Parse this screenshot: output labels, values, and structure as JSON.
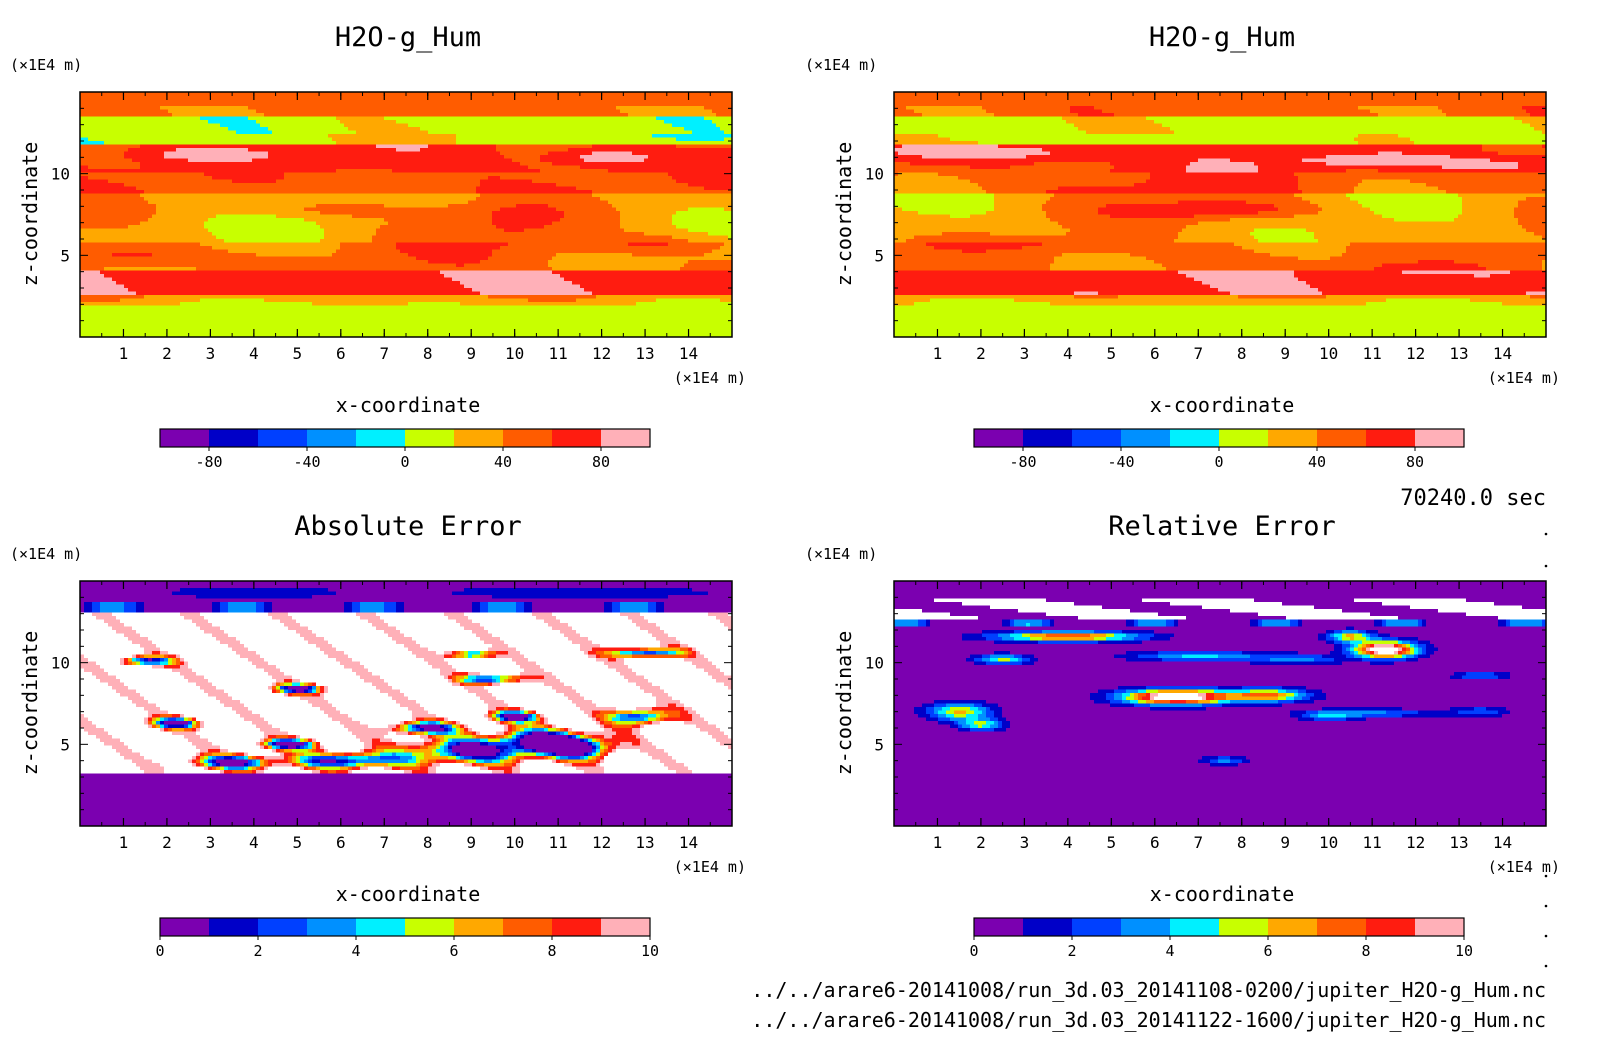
{
  "panels": [
    {
      "title": "H2O-g_Hum",
      "ylabel": "z-coordinate",
      "xlabel": "x-coordinate",
      "y_unit": "(×1E4 m)",
      "x_unit": "(×1E4 m)",
      "field": "humidity_a",
      "colorbar": {
        "ticks": [
          "-80",
          "-40",
          "0",
          "40",
          "80"
        ],
        "levels": [
          -100,
          -80,
          -60,
          -40,
          -20,
          0,
          20,
          40,
          60,
          80,
          100
        ]
      }
    },
    {
      "title": "H2O-g_Hum",
      "ylabel": "z-coordinate",
      "xlabel": "x-coordinate",
      "y_unit": "(×1E4 m)",
      "x_unit": "(×1E4 m)",
      "field": "humidity_b",
      "colorbar": {
        "ticks": [
          "-80",
          "-40",
          "0",
          "40",
          "80"
        ],
        "levels": [
          -100,
          -80,
          -60,
          -40,
          -20,
          0,
          20,
          40,
          60,
          80,
          100
        ]
      }
    },
    {
      "title": "Absolute Error",
      "ylabel": "z-coordinate",
      "xlabel": "x-coordinate",
      "y_unit": "(×1E4 m)",
      "x_unit": "(×1E4 m)",
      "field": "abs_error",
      "colorbar": {
        "ticks": [
          "0",
          "2",
          "4",
          "6",
          "8",
          "10"
        ],
        "levels": [
          0,
          1,
          2,
          3,
          4,
          5,
          6,
          7,
          8,
          9,
          10
        ]
      }
    },
    {
      "title": "Relative Error",
      "ylabel": "z-coordinate",
      "xlabel": "x-coordinate",
      "y_unit": "(×1E4 m)",
      "x_unit": "(×1E4 m)",
      "field": "rel_error",
      "colorbar": {
        "ticks": [
          "0",
          "2",
          "4",
          "6",
          "8",
          "10"
        ],
        "levels": [
          0,
          1,
          2,
          3,
          4,
          5,
          6,
          7,
          8,
          9,
          10
        ]
      }
    }
  ],
  "time_label": "70240.0 sec",
  "file_paths": [
    "../../arare6-20141008/run_3d.03_20141108-0200/jupiter_H2O-g_Hum.nc",
    "../../arare6-20141008/run_3d.03_20141122-1600/jupiter_H2O-g_Hum.nc"
  ],
  "colors": {
    "palette": [
      "#7b00b0",
      "#0000c8",
      "#0040ff",
      "#0090ff",
      "#00f0ff",
      "#c8ff00",
      "#ffa800",
      "#ff5c00",
      "#ff1c10",
      "#ffb0b8"
    ],
    "above_range": "#ffffff"
  },
  "chart_data": [
    {
      "type": "heatmap",
      "title": "H2O-g_Hum",
      "xlabel": "x-coordinate",
      "ylabel": "z-coordinate",
      "x_unit": "×1E4 m",
      "y_unit": "×1E4 m",
      "xlim": [
        0,
        15
      ],
      "ylim": [
        0,
        15
      ],
      "xticks": [
        1,
        2,
        3,
        4,
        5,
        6,
        7,
        8,
        9,
        10,
        11,
        12,
        13,
        14
      ],
      "yticks": [
        5,
        10
      ],
      "color_levels": [
        -100,
        -80,
        -60,
        -40,
        -20,
        0,
        20,
        40,
        60,
        80,
        100
      ],
      "approx_layers_by_z": [
        {
          "z": [
            0,
            2
          ],
          "value_range": [
            0,
            20
          ]
        },
        {
          "z": [
            2,
            4
          ],
          "value_range": [
            60,
            100
          ]
        },
        {
          "z": [
            4,
            9
          ],
          "value_range": [
            20,
            60
          ]
        },
        {
          "z": [
            9,
            12
          ],
          "value_range": [
            40,
            100
          ]
        },
        {
          "z": [
            12,
            14
          ],
          "value_range": [
            0,
            20
          ]
        },
        {
          "z": [
            14,
            15
          ],
          "value_range": [
            40,
            60
          ]
        }
      ]
    },
    {
      "type": "heatmap",
      "title": "H2O-g_Hum",
      "xlabel": "x-coordinate",
      "ylabel": "z-coordinate",
      "x_unit": "×1E4 m",
      "y_unit": "×1E4 m",
      "xlim": [
        0,
        15
      ],
      "ylim": [
        0,
        15
      ],
      "xticks": [
        1,
        2,
        3,
        4,
        5,
        6,
        7,
        8,
        9,
        10,
        11,
        12,
        13,
        14
      ],
      "yticks": [
        5,
        10
      ],
      "color_levels": [
        -100,
        -80,
        -60,
        -40,
        -20,
        0,
        20,
        40,
        60,
        80,
        100
      ],
      "approx_layers_by_z": [
        {
          "z": [
            0,
            2
          ],
          "value_range": [
            0,
            20
          ]
        },
        {
          "z": [
            2,
            4
          ],
          "value_range": [
            60,
            100
          ]
        },
        {
          "z": [
            4,
            9
          ],
          "value_range": [
            20,
            80
          ]
        },
        {
          "z": [
            9,
            12
          ],
          "value_range": [
            40,
            100
          ]
        },
        {
          "z": [
            12,
            14
          ],
          "value_range": [
            0,
            20
          ]
        },
        {
          "z": [
            14,
            15
          ],
          "value_range": [
            40,
            60
          ]
        }
      ]
    },
    {
      "type": "heatmap",
      "title": "Absolute Error",
      "xlabel": "x-coordinate",
      "ylabel": "z-coordinate",
      "x_unit": "×1E4 m",
      "y_unit": "×1E4 m",
      "xlim": [
        0,
        15
      ],
      "ylim": [
        0,
        15
      ],
      "xticks": [
        1,
        2,
        3,
        4,
        5,
        6,
        7,
        8,
        9,
        10,
        11,
        12,
        13,
        14
      ],
      "yticks": [
        5,
        10
      ],
      "color_levels": [
        0,
        1,
        2,
        3,
        4,
        5,
        6,
        7,
        8,
        9,
        10
      ],
      "approx_layers_by_z": [
        {
          "z": [
            0,
            3.3
          ],
          "value_range": [
            0,
            1
          ]
        },
        {
          "z": [
            3.3,
            13.5
          ],
          "value_range": [
            0,
            10
          ],
          "note": "mostly above 10 (white) with colored patches"
        },
        {
          "z": [
            13.5,
            15
          ],
          "value_range": [
            0,
            2
          ]
        }
      ]
    },
    {
      "type": "heatmap",
      "title": "Relative Error",
      "xlabel": "x-coordinate",
      "ylabel": "z-coordinate",
      "x_unit": "×1E4 m",
      "y_unit": "×1E4 m",
      "xlim": [
        0,
        15
      ],
      "ylim": [
        0,
        15
      ],
      "xticks": [
        1,
        2,
        3,
        4,
        5,
        6,
        7,
        8,
        9,
        10,
        11,
        12,
        13,
        14
      ],
      "yticks": [
        5,
        10
      ],
      "color_levels": [
        0,
        1,
        2,
        3,
        4,
        5,
        6,
        7,
        8,
        9,
        10
      ],
      "approx_layers_by_z": [
        {
          "z": [
            0,
            12.5
          ],
          "value_range": [
            0,
            1
          ],
          "note": "isolated patches up to above 10 near z=6-11"
        },
        {
          "z": [
            12.5,
            14
          ],
          "value_range": [
            0,
            10
          ],
          "note": "white bands above 10"
        },
        {
          "z": [
            14,
            15
          ],
          "value_range": [
            0,
            1
          ]
        }
      ]
    }
  ]
}
